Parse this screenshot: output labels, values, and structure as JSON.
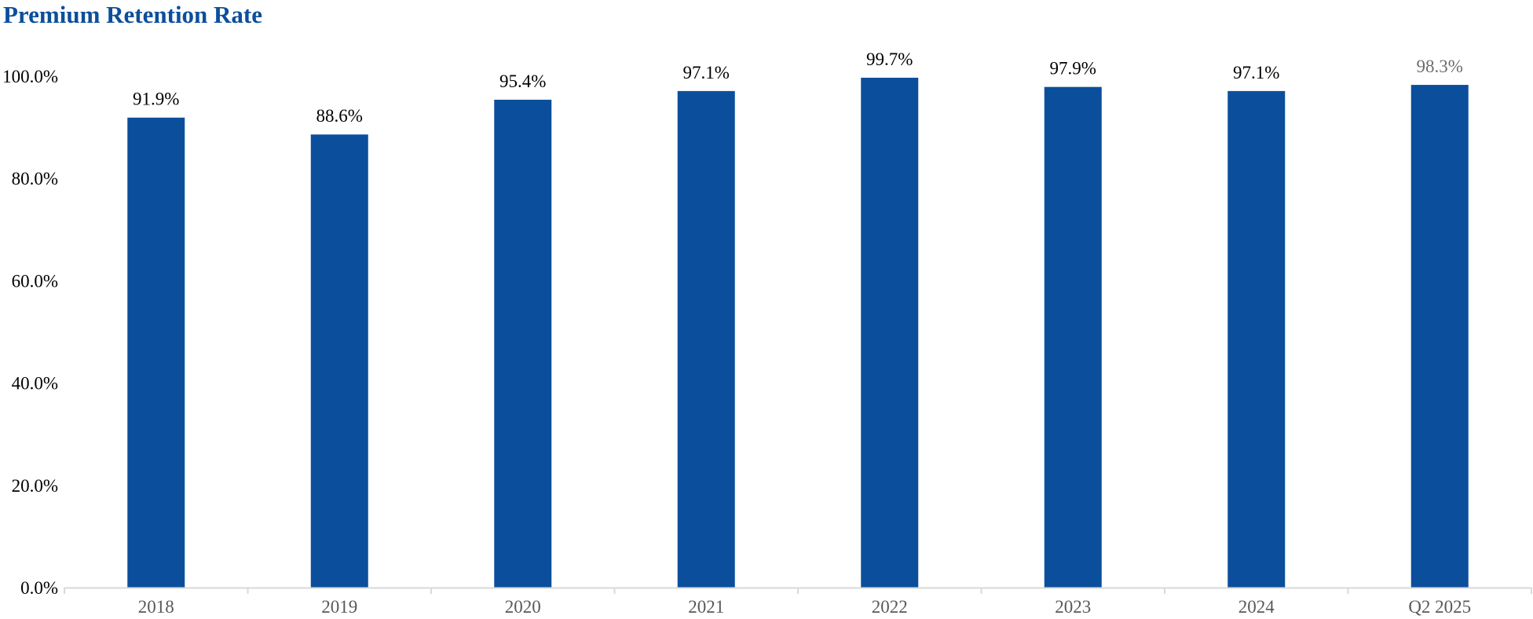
{
  "chart_data": {
    "type": "bar",
    "title": "Premium Retention Rate",
    "xlabel": "",
    "ylabel": "",
    "categories": [
      "2018",
      "2019",
      "2020",
      "2021",
      "2022",
      "2023",
      "2024",
      "Q2 2025"
    ],
    "values": [
      91.9,
      88.6,
      95.4,
      97.1,
      99.7,
      97.9,
      97.1,
      98.3
    ],
    "data_labels": [
      "91.9%",
      "88.6%",
      "95.4%",
      "97.1%",
      "99.7%",
      "97.9%",
      "97.1%",
      "98.3%"
    ],
    "y_ticks": [
      0,
      20,
      40,
      60,
      80,
      100
    ],
    "y_tick_labels": [
      "0.0%",
      "20.0%",
      "40.0%",
      "60.0%",
      "80.0%",
      "100.0%"
    ],
    "ylim": [
      0,
      100
    ],
    "grid": false,
    "legend": "none",
    "colors": {
      "bar": "#0b4f9c",
      "title": "#0b4f9c",
      "axis": "#d9d9d9",
      "x_tick_text": "#595959",
      "last_label_text": "#6d6d6d"
    }
  }
}
